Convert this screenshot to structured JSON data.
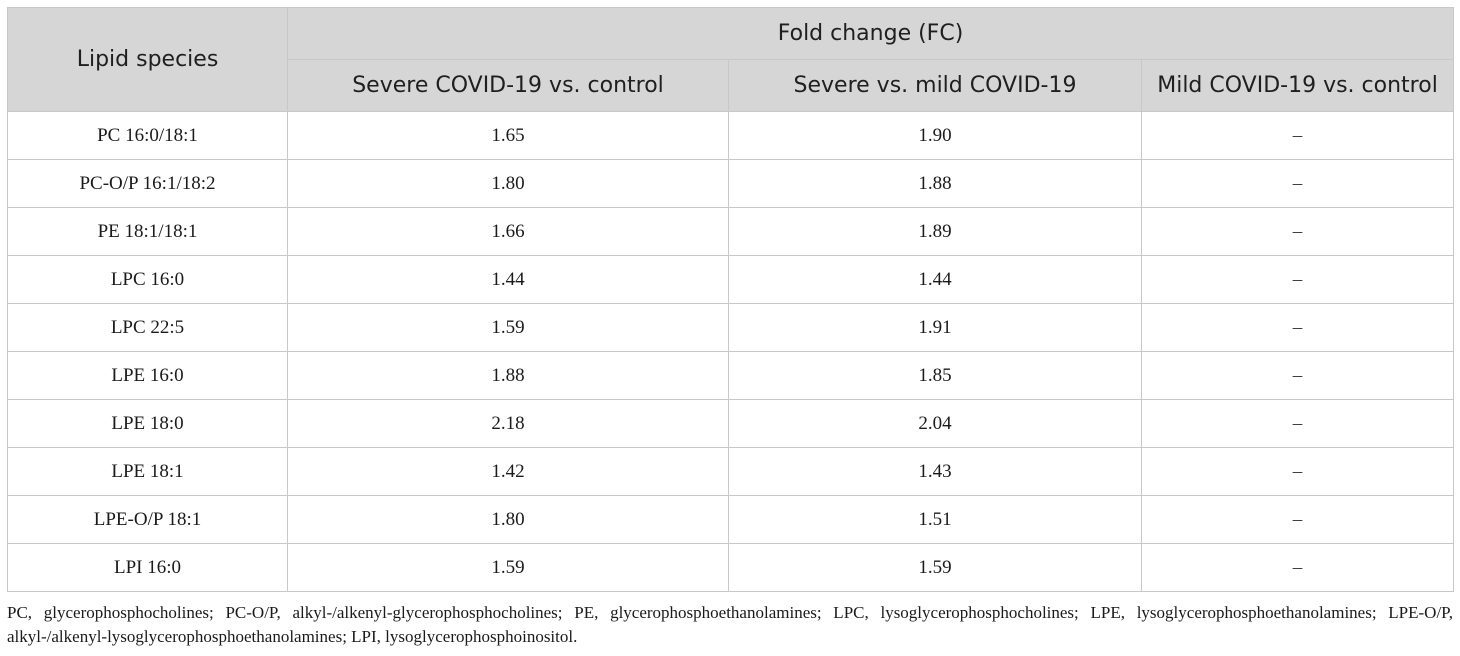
{
  "table": {
    "header": {
      "lipid_label": "Lipid species",
      "group_label": "Fold change (FC)",
      "columns": [
        "Severe COVID-19 vs. control",
        "Severe vs. mild COVID-19",
        "Mild COVID-19 vs. control"
      ]
    },
    "rows": [
      [
        "PC 16:0/18:1",
        "1.65",
        "1.90",
        "–"
      ],
      [
        "PC-O/P 16:1/18:2",
        "1.80",
        "1.88",
        "–"
      ],
      [
        "PE 18:1/18:1",
        "1.66",
        "1.89",
        "–"
      ],
      [
        "LPC 16:0",
        "1.44",
        "1.44",
        "–"
      ],
      [
        "LPC 22:5",
        "1.59",
        "1.91",
        "–"
      ],
      [
        "LPE 16:0",
        "1.88",
        "1.85",
        "–"
      ],
      [
        "LPE 18:0",
        "2.18",
        "2.04",
        "–"
      ],
      [
        "LPE 18:1",
        "1.42",
        "1.43",
        "–"
      ],
      [
        "LPE-O/P 18:1",
        "1.80",
        "1.51",
        "–"
      ],
      [
        "LPI 16:0",
        "1.59",
        "1.59",
        "–"
      ]
    ]
  },
  "footnote": "PC, glycerophosphocholines; PC-O/P, alkyl-/alkenyl-glycerophosphocholines; PE, glycerophosphoethanolamines; LPC, lysoglycerophosphocholines; LPE, lysoglycerophosphoethanolamines; LPE-O/P, alkyl-/alkenyl-lysoglycerophosphoethanolamines; LPI, lysoglycerophosphoinositol."
}
